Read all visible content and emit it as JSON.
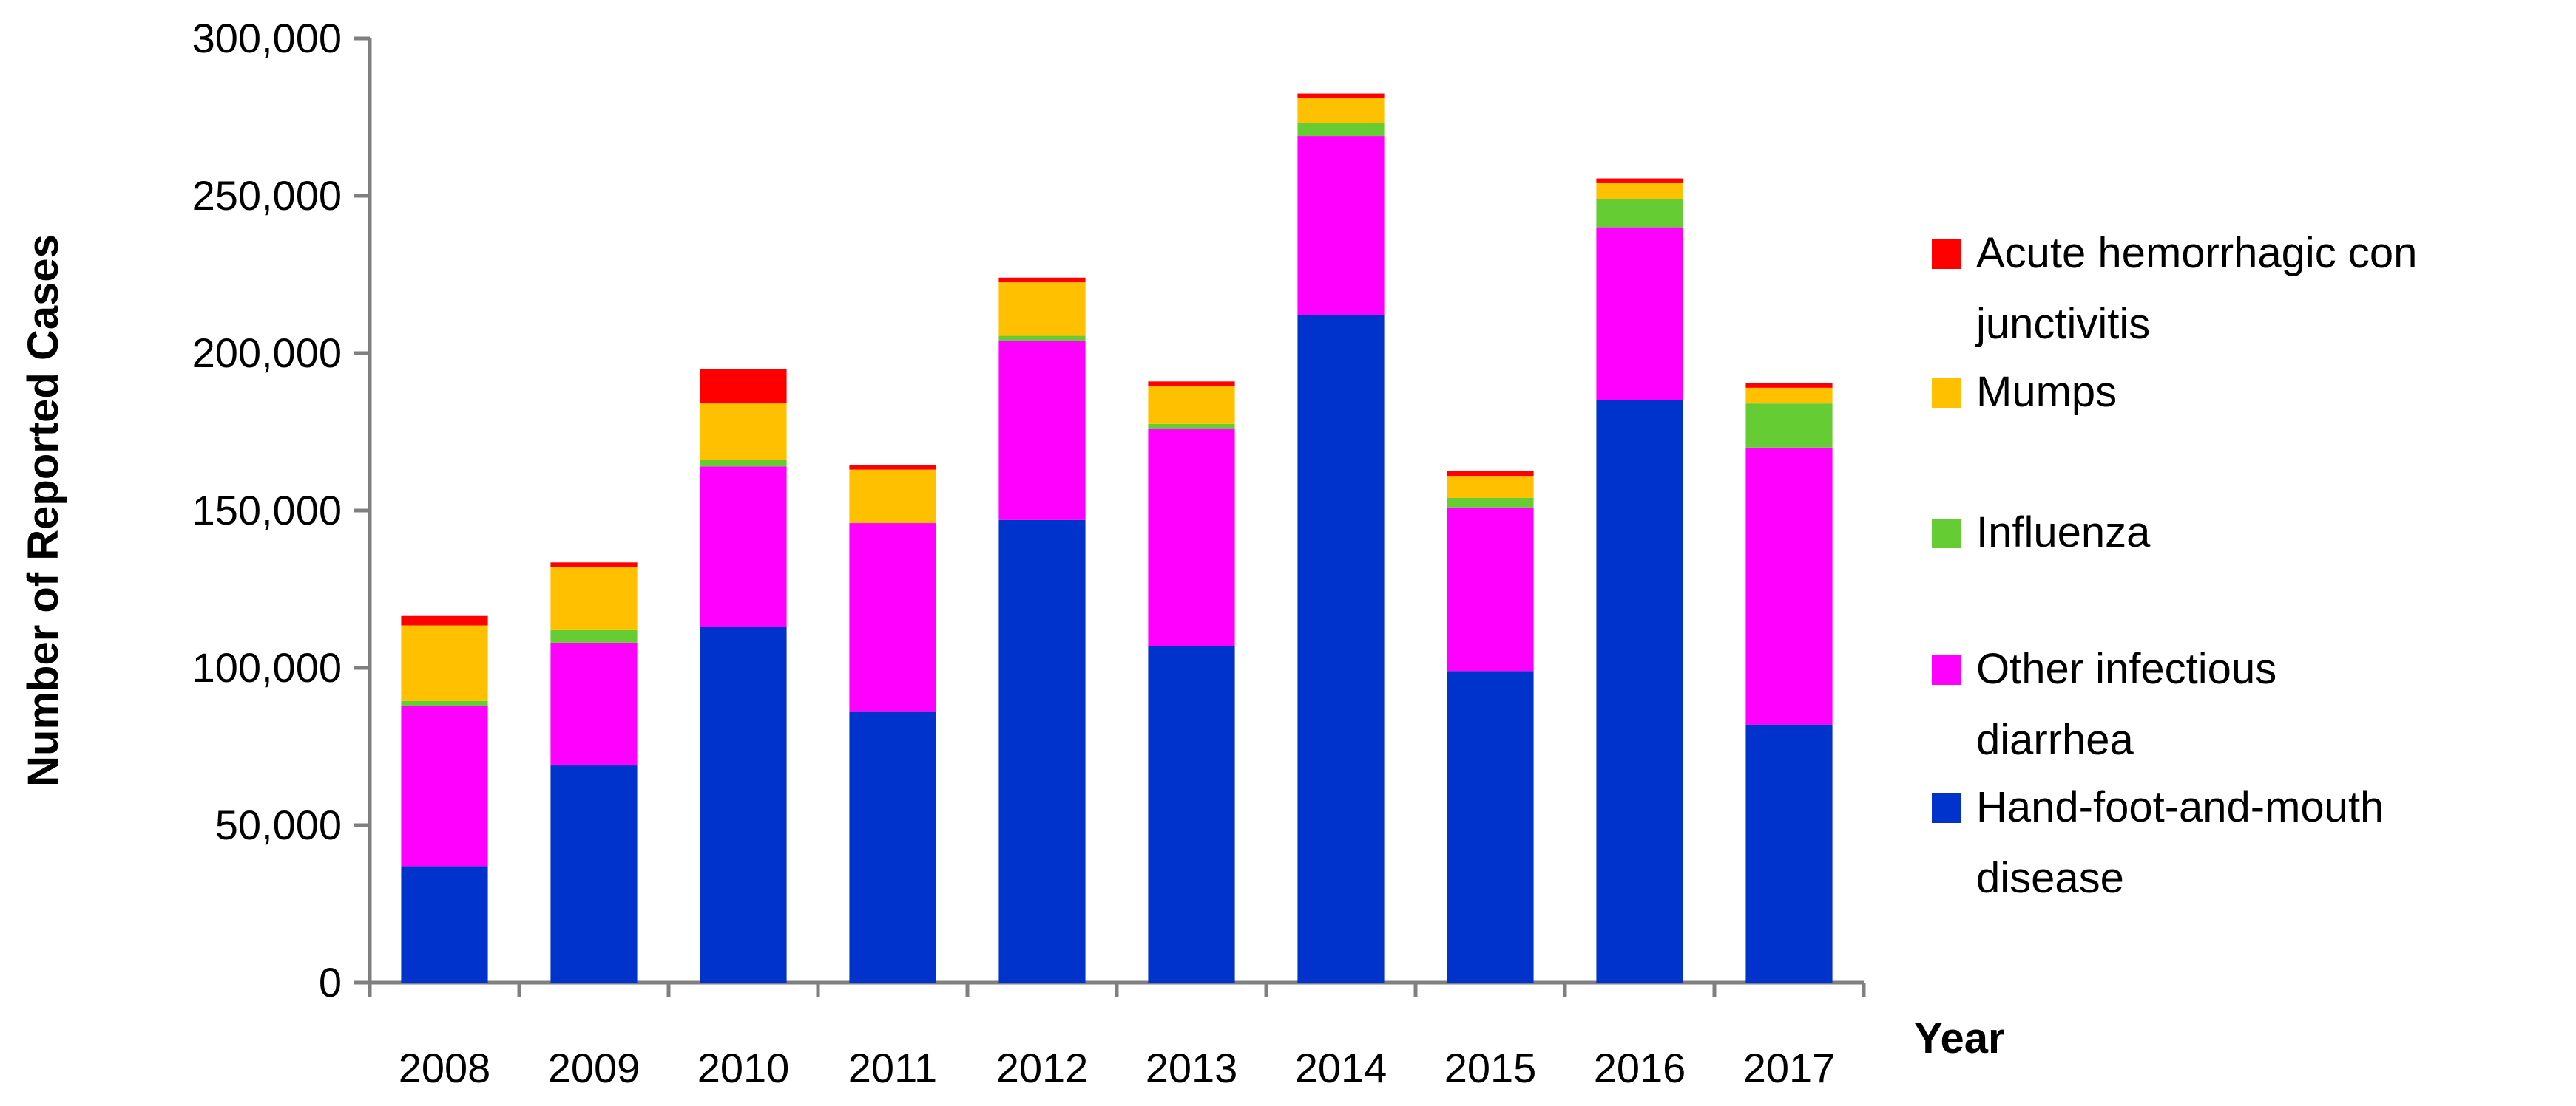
{
  "chart_data": {
    "type": "bar",
    "stacked": true,
    "categories": [
      "2008",
      "2009",
      "2010",
      "2011",
      "2012",
      "2013",
      "2014",
      "2015",
      "2016",
      "2017"
    ],
    "series": [
      {
        "name": "Hand-foot-and-mouth disease",
        "color": "#0033CC",
        "values": [
          37000,
          69000,
          113000,
          86000,
          147000,
          107000,
          212000,
          99000,
          185000,
          82000
        ]
      },
      {
        "name": "Other infectious diarrhea",
        "color": "#FF00FF",
        "values": [
          51000,
          39000,
          51000,
          60000,
          57000,
          69000,
          57000,
          52000,
          55000,
          88000
        ]
      },
      {
        "name": "Influenza",
        "color": "#66CC33",
        "values": [
          1500,
          4000,
          2000,
          0,
          1500,
          1500,
          4000,
          3000,
          9000,
          14000
        ]
      },
      {
        "name": "Mumps",
        "color": "#FFC000",
        "values": [
          24000,
          20000,
          18000,
          17000,
          17000,
          12000,
          8000,
          7000,
          5000,
          5000
        ]
      },
      {
        "name": "Acute hemorrhagic conjunctivitis",
        "color": "#FF0000",
        "values": [
          3000,
          1500,
          11000,
          1500,
          1500,
          1500,
          1500,
          1500,
          1500,
          1500
        ]
      }
    ],
    "ylim": [
      0,
      300000
    ],
    "yticks": [
      "0",
      "50,000",
      "100,000",
      "150,000",
      "200,000",
      "250,000",
      "300,000"
    ],
    "ytick_values": [
      0,
      50000,
      100000,
      150000,
      200000,
      250000,
      300000
    ],
    "xlabel": "Year",
    "ylabel": "Number of Reported Cases",
    "grid": false,
    "legend_position": "right",
    "legend": [
      {
        "lines": [
          "Acute hemorrhagic con",
          "junctivitis"
        ],
        "color": "#FF0000"
      },
      {
        "lines": [
          "Mumps"
        ],
        "color": "#FFC000"
      },
      {
        "lines": [
          "Influenza"
        ],
        "color": "#66CC33"
      },
      {
        "lines": [
          "Other infectious",
          "diarrhea"
        ],
        "color": "#FF00FF"
      },
      {
        "lines": [
          "Hand-foot-and-mouth",
          "disease"
        ],
        "color": "#0033CC"
      }
    ]
  }
}
